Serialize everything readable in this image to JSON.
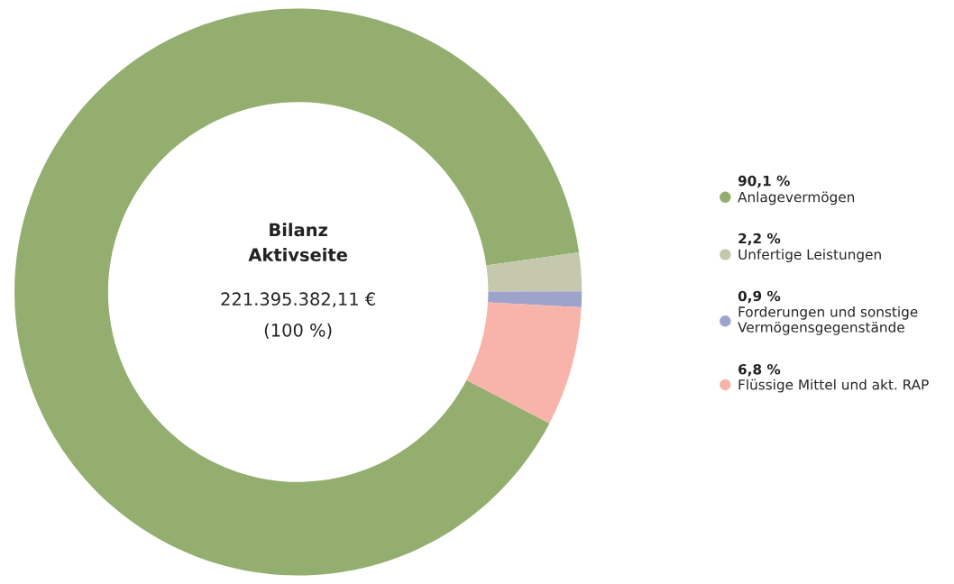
{
  "chart_data": {
    "type": "donut",
    "title": "Bilanz Aktivseite",
    "annotations": [
      "221.395.382,11 €",
      "(100 %)"
    ],
    "categories": [
      "Anlagevermögen",
      "Unfertige Leistungen",
      "Forderungen und sonstige Vermögensgegenstände",
      "Flüssige Mittel und akt. RAP"
    ],
    "values": [
      90.1,
      2.2,
      0.9,
      6.8
    ],
    "value_labels": [
      "90,1 %",
      "2,2 %",
      "0,9 %",
      "6,8 %"
    ],
    "colors": [
      "#93ae6f",
      "#c5c8ad",
      "#9ea3cc",
      "#f8b4aa"
    ],
    "legend": "right"
  }
}
